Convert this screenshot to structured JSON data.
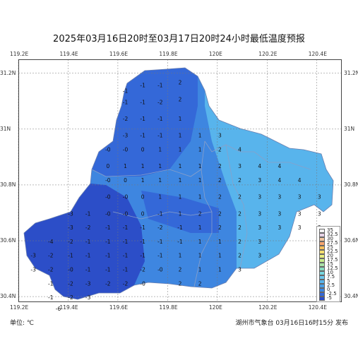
{
  "title": "2025年03月16日20时至03月17日20时24小时最低温度预报",
  "lon_ticks": [
    "119.2E",
    "119.4E",
    "119.6E",
    "119.8E",
    "120E",
    "120.2E",
    "120.4E"
  ],
  "lat_ticks": [
    "31.2N",
    "31N",
    "30.8N",
    "30.6N",
    "30.4N"
  ],
  "unit": "单位: ℃",
  "issuer": "湖州市气象台 03月16日16时15分 发布",
  "legend": {
    "labels": [
      "35",
      "32.5",
      "30",
      "27.5",
      "25",
      "22.5",
      "20",
      "17.5",
      "15",
      "12.5",
      "10",
      "7.5",
      "5",
      "2.5",
      "0",
      "-2.5",
      "-5"
    ],
    "colors": [
      "#f3f3f3",
      "#e8d4e8",
      "#f2c6a0",
      "#f6a56e",
      "#f7c05a",
      "#f7e070",
      "#e8ee80",
      "#c8ec8c",
      "#a8e2a8",
      "#88dcc0",
      "#78d8e0",
      "#6cc8ee",
      "#58b4ec",
      "#4aa0e8",
      "#3e86e0",
      "#3468d8",
      "#2c4ec8"
    ]
  },
  "map_colors": {
    "very_cold": "#2c4ec8",
    "cold": "#3468d8",
    "cool": "#3e86e0",
    "mild": "#4aa0e8",
    "warm": "#58b4ec",
    "boundary": "#8aa0c8"
  },
  "values": [
    {
      "text": "-1",
      "lon": 119.63,
      "lat": 31.13
    },
    {
      "text": "-1",
      "lon": 119.7,
      "lat": 31.15
    },
    {
      "text": "-1",
      "lon": 119.77,
      "lat": 31.15
    },
    {
      "text": "2",
      "lon": 119.85,
      "lat": 31.16
    },
    {
      "text": "-1",
      "lon": 119.63,
      "lat": 31.09
    },
    {
      "text": "-1",
      "lon": 119.7,
      "lat": 31.09
    },
    {
      "text": "-2",
      "lon": 119.77,
      "lat": 31.09
    },
    {
      "text": "2",
      "lon": 119.85,
      "lat": 31.1
    },
    {
      "text": "-2",
      "lon": 119.63,
      "lat": 31.03
    },
    {
      "text": "-1",
      "lon": 119.7,
      "lat": 31.03
    },
    {
      "text": "-1",
      "lon": 119.77,
      "lat": 31.03
    },
    {
      "text": "1",
      "lon": 119.85,
      "lat": 31.03
    },
    {
      "text": "-3",
      "lon": 119.63,
      "lat": 30.97
    },
    {
      "text": "-1",
      "lon": 119.7,
      "lat": 30.97
    },
    {
      "text": "-1",
      "lon": 119.77,
      "lat": 30.97
    },
    {
      "text": "1",
      "lon": 119.85,
      "lat": 30.97
    },
    {
      "text": "1",
      "lon": 119.93,
      "lat": 30.97
    },
    {
      "text": "3",
      "lon": 120.01,
      "lat": 30.97
    },
    {
      "text": "-0",
      "lon": 119.56,
      "lat": 30.92
    },
    {
      "text": "-0",
      "lon": 119.63,
      "lat": 30.92
    },
    {
      "text": "0",
      "lon": 119.7,
      "lat": 30.92
    },
    {
      "text": "1",
      "lon": 119.77,
      "lat": 30.92
    },
    {
      "text": "1",
      "lon": 119.85,
      "lat": 30.92
    },
    {
      "text": "1",
      "lon": 119.93,
      "lat": 30.92
    },
    {
      "text": "2",
      "lon": 120.01,
      "lat": 30.92
    },
    {
      "text": "4",
      "lon": 120.09,
      "lat": 30.92
    },
    {
      "text": "0",
      "lon": 119.56,
      "lat": 30.86
    },
    {
      "text": "1",
      "lon": 119.63,
      "lat": 30.86
    },
    {
      "text": "1",
      "lon": 119.7,
      "lat": 30.86
    },
    {
      "text": "1",
      "lon": 119.77,
      "lat": 30.86
    },
    {
      "text": "1",
      "lon": 119.85,
      "lat": 30.86
    },
    {
      "text": "1",
      "lon": 119.93,
      "lat": 30.86
    },
    {
      "text": "2",
      "lon": 120.01,
      "lat": 30.86
    },
    {
      "text": "3",
      "lon": 120.09,
      "lat": 30.86
    },
    {
      "text": "4",
      "lon": 120.17,
      "lat": 30.86
    },
    {
      "text": "4",
      "lon": 120.25,
      "lat": 30.86
    },
    {
      "text": "-0",
      "lon": 119.56,
      "lat": 30.81
    },
    {
      "text": "0",
      "lon": 119.63,
      "lat": 30.81
    },
    {
      "text": "1",
      "lon": 119.7,
      "lat": 30.81
    },
    {
      "text": "1",
      "lon": 119.77,
      "lat": 30.81
    },
    {
      "text": "1",
      "lon": 119.85,
      "lat": 30.81
    },
    {
      "text": "1",
      "lon": 119.93,
      "lat": 30.81
    },
    {
      "text": "2",
      "lon": 120.01,
      "lat": 30.81
    },
    {
      "text": "2",
      "lon": 120.09,
      "lat": 30.81
    },
    {
      "text": "3",
      "lon": 120.17,
      "lat": 30.81
    },
    {
      "text": "4",
      "lon": 120.25,
      "lat": 30.81
    },
    {
      "text": "4",
      "lon": 120.33,
      "lat": 30.81
    },
    {
      "text": "-0",
      "lon": 119.56,
      "lat": 30.75
    },
    {
      "text": "-0",
      "lon": 119.63,
      "lat": 30.75
    },
    {
      "text": "0",
      "lon": 119.7,
      "lat": 30.75
    },
    {
      "text": "1",
      "lon": 119.77,
      "lat": 30.75
    },
    {
      "text": "1",
      "lon": 119.85,
      "lat": 30.75
    },
    {
      "text": "1",
      "lon": 119.93,
      "lat": 30.75
    },
    {
      "text": "2",
      "lon": 120.01,
      "lat": 30.75
    },
    {
      "text": "2",
      "lon": 120.09,
      "lat": 30.75
    },
    {
      "text": "3",
      "lon": 120.17,
      "lat": 30.75
    },
    {
      "text": "3",
      "lon": 120.25,
      "lat": 30.75
    },
    {
      "text": "3",
      "lon": 120.33,
      "lat": 30.75
    },
    {
      "text": "3",
      "lon": 120.41,
      "lat": 30.75
    },
    {
      "text": "-3",
      "lon": 119.41,
      "lat": 30.69
    },
    {
      "text": "-1",
      "lon": 119.48,
      "lat": 30.69
    },
    {
      "text": "-0",
      "lon": 119.56,
      "lat": 30.69
    },
    {
      "text": "-0",
      "lon": 119.63,
      "lat": 30.69
    },
    {
      "text": "0",
      "lon": 119.7,
      "lat": 30.69
    },
    {
      "text": "-1",
      "lon": 119.77,
      "lat": 30.69
    },
    {
      "text": "1",
      "lon": 119.85,
      "lat": 30.69
    },
    {
      "text": "2",
      "lon": 119.93,
      "lat": 30.69
    },
    {
      "text": "2",
      "lon": 120.01,
      "lat": 30.69
    },
    {
      "text": "2",
      "lon": 120.09,
      "lat": 30.69
    },
    {
      "text": "3",
      "lon": 120.17,
      "lat": 30.69
    },
    {
      "text": "3",
      "lon": 120.25,
      "lat": 30.69
    },
    {
      "text": "3",
      "lon": 120.33,
      "lat": 30.69
    },
    {
      "text": "3",
      "lon": 120.41,
      "lat": 30.69
    },
    {
      "text": "-3",
      "lon": 119.41,
      "lat": 30.64
    },
    {
      "text": "-2",
      "lon": 119.48,
      "lat": 30.64
    },
    {
      "text": "-1",
      "lon": 119.56,
      "lat": 30.64
    },
    {
      "text": "-1",
      "lon": 119.63,
      "lat": 30.64
    },
    {
      "text": "-1",
      "lon": 119.7,
      "lat": 30.64
    },
    {
      "text": "-2",
      "lon": 119.77,
      "lat": 30.64
    },
    {
      "text": "-1",
      "lon": 119.85,
      "lat": 30.64
    },
    {
      "text": "1",
      "lon": 119.93,
      "lat": 30.64
    },
    {
      "text": "2",
      "lon": 120.01,
      "lat": 30.64
    },
    {
      "text": "2",
      "lon": 120.09,
      "lat": 30.64
    },
    {
      "text": "3",
      "lon": 120.17,
      "lat": 30.64
    },
    {
      "text": "3",
      "lon": 120.25,
      "lat": 30.64
    },
    {
      "text": "3",
      "lon": 120.33,
      "lat": 30.64
    },
    {
      "text": "3",
      "lon": 120.41,
      "lat": 30.64
    },
    {
      "text": "-4",
      "lon": 119.33,
      "lat": 30.59
    },
    {
      "text": "-2",
      "lon": 119.41,
      "lat": 30.59
    },
    {
      "text": "-1",
      "lon": 119.48,
      "lat": 30.59
    },
    {
      "text": "-1",
      "lon": 119.56,
      "lat": 30.59
    },
    {
      "text": "-1",
      "lon": 119.63,
      "lat": 30.59
    },
    {
      "text": "-1",
      "lon": 119.7,
      "lat": 30.59
    },
    {
      "text": "-1",
      "lon": 119.77,
      "lat": 30.59
    },
    {
      "text": "-1",
      "lon": 119.85,
      "lat": 30.59
    },
    {
      "text": "1",
      "lon": 119.93,
      "lat": 30.59
    },
    {
      "text": "1",
      "lon": 120.01,
      "lat": 30.59
    },
    {
      "text": "2",
      "lon": 120.09,
      "lat": 30.59
    },
    {
      "text": "3",
      "lon": 120.17,
      "lat": 30.59
    },
    {
      "text": "-3",
      "lon": 119.26,
      "lat": 30.54
    },
    {
      "text": "-2",
      "lon": 119.33,
      "lat": 30.54
    },
    {
      "text": "-1",
      "lon": 119.41,
      "lat": 30.54
    },
    {
      "text": "-1",
      "lon": 119.48,
      "lat": 30.54
    },
    {
      "text": "-1",
      "lon": 119.56,
      "lat": 30.54
    },
    {
      "text": "-1",
      "lon": 119.63,
      "lat": 30.54
    },
    {
      "text": "-1",
      "lon": 119.7,
      "lat": 30.54
    },
    {
      "text": "-1",
      "lon": 119.77,
      "lat": 30.54
    },
    {
      "text": "1",
      "lon": 119.85,
      "lat": 30.54
    },
    {
      "text": "1",
      "lon": 119.93,
      "lat": 30.54
    },
    {
      "text": "1",
      "lon": 120.01,
      "lat": 30.54
    },
    {
      "text": "2",
      "lon": 120.09,
      "lat": 30.54
    },
    {
      "text": "3",
      "lon": 120.17,
      "lat": 30.54
    },
    {
      "text": "-3",
      "lon": 119.26,
      "lat": 30.49
    },
    {
      "text": "-2",
      "lon": 119.33,
      "lat": 30.49
    },
    {
      "text": "-0",
      "lon": 119.41,
      "lat": 30.49
    },
    {
      "text": "-1",
      "lon": 119.48,
      "lat": 30.49
    },
    {
      "text": "-1",
      "lon": 119.56,
      "lat": 30.49
    },
    {
      "text": "-1",
      "lon": 119.63,
      "lat": 30.49
    },
    {
      "text": "-2",
      "lon": 119.7,
      "lat": 30.49
    },
    {
      "text": "-0",
      "lon": 119.77,
      "lat": 30.49
    },
    {
      "text": "2",
      "lon": 119.85,
      "lat": 30.49
    },
    {
      "text": "1",
      "lon": 119.93,
      "lat": 30.49
    },
    {
      "text": "1",
      "lon": 120.01,
      "lat": 30.49
    },
    {
      "text": "3",
      "lon": 120.09,
      "lat": 30.49
    },
    {
      "text": "-1",
      "lon": 119.33,
      "lat": 30.44
    },
    {
      "text": "-2",
      "lon": 119.41,
      "lat": 30.44
    },
    {
      "text": "-3",
      "lon": 119.48,
      "lat": 30.44
    },
    {
      "text": "-2",
      "lon": 119.56,
      "lat": 30.44
    },
    {
      "text": "-2",
      "lon": 119.63,
      "lat": 30.44
    },
    {
      "text": "-0",
      "lon": 119.7,
      "lat": 30.44
    },
    {
      "text": "2",
      "lon": 119.85,
      "lat": 30.44
    },
    {
      "text": "2",
      "lon": 119.93,
      "lat": 30.44
    },
    {
      "text": "-1",
      "lon": 119.33,
      "lat": 30.39
    },
    {
      "text": "-2",
      "lon": 119.41,
      "lat": 30.39
    },
    {
      "text": "-3",
      "lon": 119.48,
      "lat": 30.39
    },
    {
      "text": "-6",
      "lon": 119.36,
      "lat": 30.35
    }
  ]
}
